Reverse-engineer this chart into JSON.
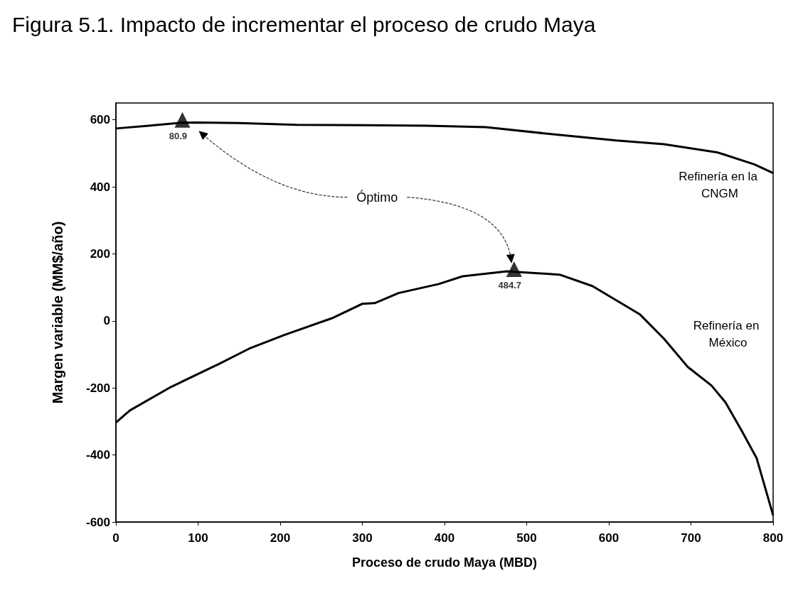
{
  "chart_data": {
    "type": "line",
    "title": "Figura 5.1. Impacto de incrementar el proceso de crudo Maya",
    "xlabel": "Proceso de crudo Maya (MBD)",
    "ylabel": "Margen variable (MM$/año)",
    "xlim": [
      0,
      800
    ],
    "xticks": [
      0,
      100,
      200,
      300,
      400,
      500,
      600,
      700,
      800
    ],
    "ylim": [
      -600,
      650
    ],
    "yticks": [
      -600,
      -400,
      -200,
      0,
      200,
      400,
      600
    ],
    "grid": false,
    "legend": false,
    "line_style": "solid",
    "marker": "none",
    "series": [
      {
        "name": "Refinería en la CNGM",
        "color": "#000000",
        "x": [
          0,
          40,
          80,
          100,
          150,
          220,
          300,
          378,
          450,
          523,
          609,
          667,
          733,
          777,
          800
        ],
        "values": [
          574,
          582,
          591,
          592,
          590,
          585,
          584,
          582,
          578,
          559,
          538,
          527,
          502,
          467,
          441
        ]
      },
      {
        "name": "Refinería en México",
        "color": "#000000",
        "x": [
          0,
          17,
          67,
          125,
          162,
          205,
          263,
          300,
          315,
          344,
          393,
          422,
          476,
          540,
          580,
          638,
          667,
          696,
          725,
          742,
          762,
          780,
          800
        ],
        "values": [
          -303,
          -267,
          -197,
          -129,
          -83,
          -42,
          8,
          51,
          53,
          83,
          110,
          133,
          148,
          138,
          104,
          19,
          -53,
          -137,
          -193,
          -243,
          -329,
          -410,
          -580
        ]
      },
      {
        "type": "scatter",
        "marker": "triangle",
        "color": "#000000",
        "x": [
          80.9,
          484.7
        ],
        "values": [
          591,
          146
        ]
      }
    ],
    "annotations": [
      "Óptimo",
      {
        "text": "80.9",
        "x": 80.9,
        "y": 591
      },
      {
        "text": "484.7",
        "x": 484.7,
        "y": 146
      }
    ]
  }
}
